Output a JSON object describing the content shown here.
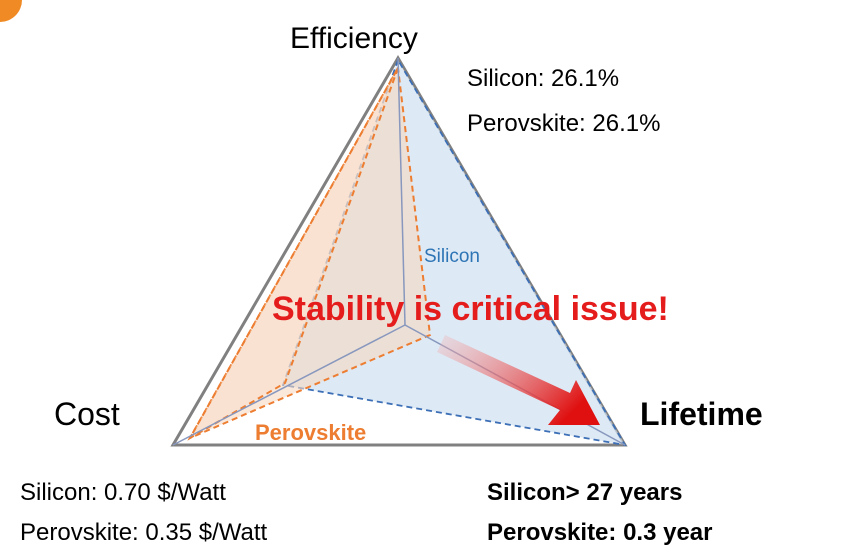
{
  "diagram": {
    "vertices": {
      "top": "Efficiency",
      "left": "Cost",
      "right": "Lifetime"
    },
    "efficiency": {
      "silicon": "Silicon: 26.1%",
      "perovskite": "Perovskite: 26.1%"
    },
    "cost": {
      "silicon": "Silicon: 0.70 $/Watt",
      "perovskite": "Perovskite: 0.35 $/Watt"
    },
    "lifetime": {
      "silicon": "Silicon> 27 years",
      "perovskite": "Perovskite: 0.3 year"
    },
    "region_labels": {
      "silicon": "Silicon",
      "perovskite": "Perovskite"
    },
    "headline": "Stability is critical issue!"
  }
}
